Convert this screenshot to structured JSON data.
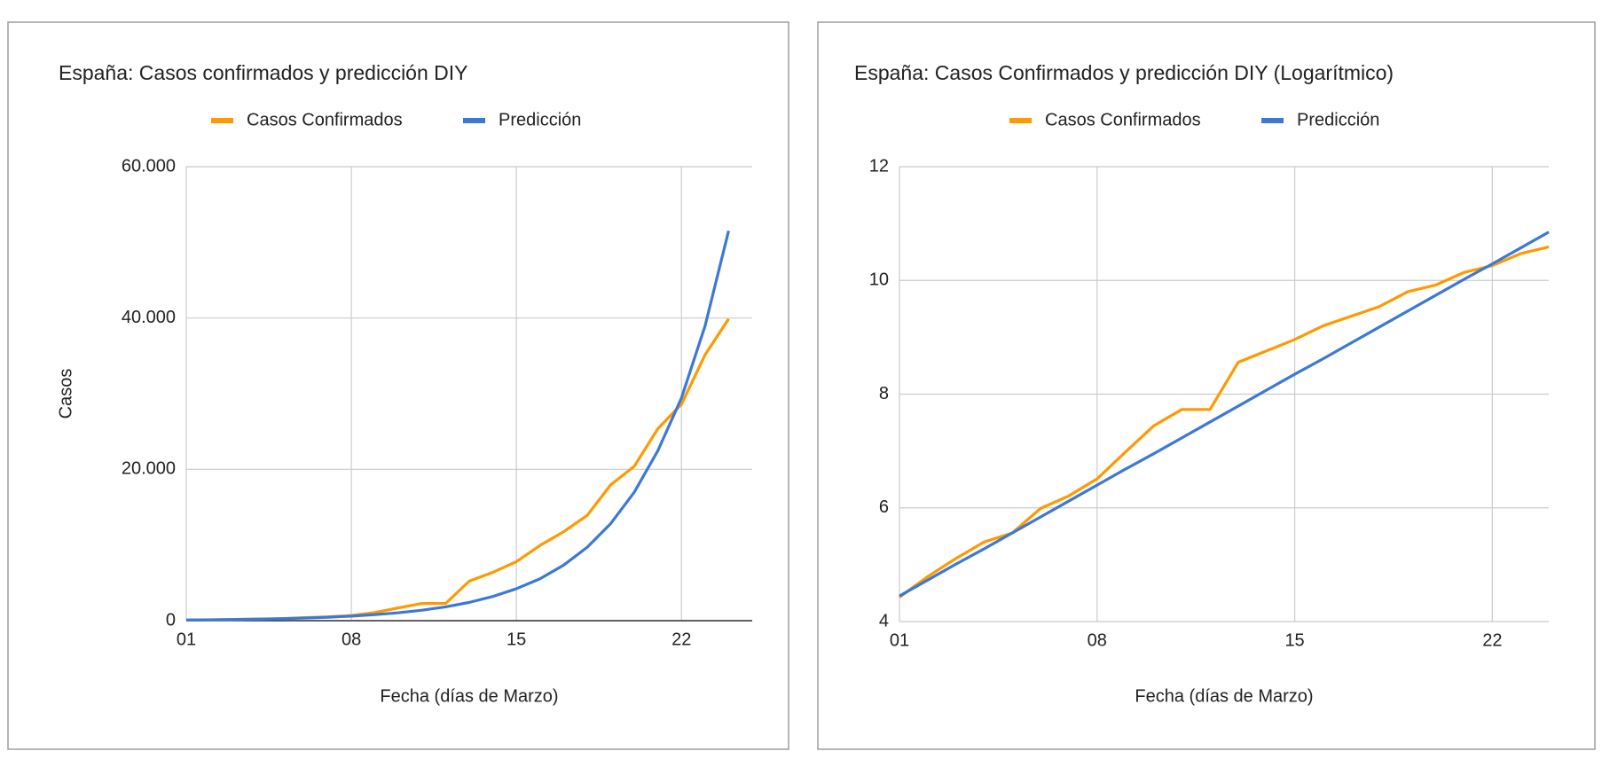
{
  "chart_data": [
    {
      "type": "line",
      "title": "España: Casos confirmados y predicción DIY",
      "x_label": "Fecha (días de Marzo)",
      "y_label": "Casos",
      "x": [
        1,
        2,
        3,
        4,
        5,
        6,
        7,
        8,
        9,
        10,
        11,
        12,
        13,
        14,
        15,
        16,
        17,
        18,
        19,
        20,
        21,
        22,
        23,
        24
      ],
      "series": [
        {
          "name": "Casos Confirmados",
          "color": "#ff9900",
          "values": [
            84,
            120,
            165,
            222,
            259,
            400,
            500,
            673,
            1073,
            1695,
            2277,
            2277,
            5232,
            6391,
            7798,
            9942,
            11748,
            13910,
            17963,
            20410,
            25374,
            28603,
            35136,
            39885
          ]
        },
        {
          "name": "Predicción",
          "color": "#3c78d8",
          "values": [
            86,
            113,
            150,
            196,
            260,
            344,
            454,
            602,
            797,
            1044,
            1381,
            1826,
            2416,
            3196,
            4227,
            5541,
            7332,
            9701,
            12836,
            16983,
            22471,
            29437,
            38948,
            51534
          ]
        }
      ],
      "xlim": [
        1,
        25
      ],
      "xticks": [
        {
          "value": 1,
          "label": "01"
        },
        {
          "value": 8,
          "label": "08"
        },
        {
          "value": 15,
          "label": "15"
        },
        {
          "value": 22,
          "label": "22"
        }
      ],
      "ylim": [
        0,
        60000
      ],
      "yticks": [
        0,
        {
          "value": 20000,
          "label": "20.000"
        },
        {
          "value": 40000,
          "label": "40.000"
        },
        {
          "value": 60000,
          "label": "60.000"
        }
      ],
      "grid": true
    },
    {
      "type": "line",
      "title": "España: Casos Confirmados y predicción DIY (Logarítmico)",
      "x_label": "Fecha (días de Marzo)",
      "x": [
        1,
        2,
        3,
        4,
        5,
        6,
        7,
        8,
        9,
        10,
        11,
        12,
        13,
        14,
        15,
        16,
        17,
        18,
        19,
        20,
        21,
        22,
        23,
        24
      ],
      "series": [
        {
          "name": "Casos Confirmados",
          "color": "#ff9900",
          "values": [
            4.43,
            4.79,
            5.11,
            5.4,
            5.56,
            5.99,
            6.21,
            6.51,
            6.98,
            7.44,
            7.73,
            7.73,
            8.56,
            8.76,
            8.96,
            9.2,
            9.37,
            9.54,
            9.8,
            9.92,
            10.14,
            10.26,
            10.47,
            10.59
          ]
        },
        {
          "name": "Predicción",
          "color": "#3c78d8",
          "values": [
            4.45,
            4.73,
            5.01,
            5.28,
            5.56,
            5.84,
            6.12,
            6.4,
            6.68,
            6.95,
            7.23,
            7.51,
            7.79,
            8.07,
            8.35,
            8.62,
            8.9,
            9.18,
            9.46,
            9.74,
            10.02,
            10.29,
            10.57,
            10.85
          ]
        }
      ],
      "xlim": [
        1,
        24
      ],
      "xticks": [
        {
          "value": 1,
          "label": "01"
        },
        {
          "value": 8,
          "label": "08"
        },
        {
          "value": 15,
          "label": "15"
        },
        {
          "value": 22,
          "label": "22"
        }
      ],
      "ylim": [
        4,
        12
      ],
      "yticks": [
        4,
        6,
        8,
        10,
        12
      ],
      "grid": true
    }
  ]
}
